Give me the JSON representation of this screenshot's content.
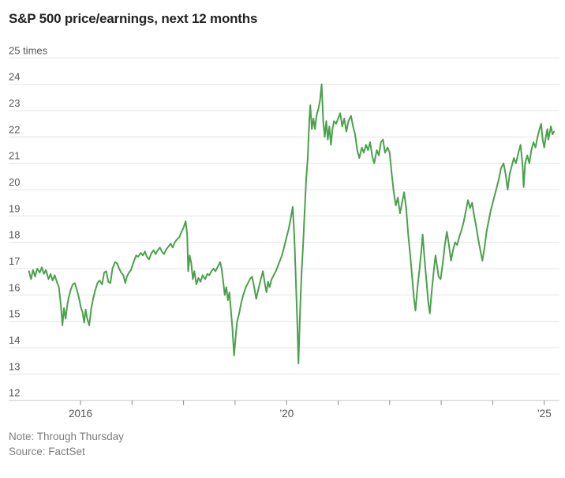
{
  "header": {
    "title": "S&P 500 price/earnings, next 12 months"
  },
  "footer": {
    "note": "Note: Through Thursday",
    "source": "Source: FactSet"
  },
  "colors": {
    "line_green": "#4aa14b",
    "gridline": "#e4e4e4",
    "axis_line": "#c8c8c8",
    "tick_mark": "#8f8f8f",
    "axis_label": "#555555",
    "title_text": "#222222",
    "footnote_text": "#7d7d7d"
  },
  "chart_data": {
    "type": "line",
    "title": "S&P 500 price/earnings, next 12 months",
    "xlabel": "",
    "ylabel": "times",
    "unit_label": "25 times",
    "ylim": [
      12,
      25
    ],
    "xlim": [
      2015.0,
      2025.2
    ],
    "grid": "horizontal",
    "legend": "none",
    "line_color": "#4aa14b",
    "y_ticks": [
      12,
      13,
      14,
      15,
      16,
      17,
      18,
      19,
      20,
      21,
      22,
      23,
      24,
      25
    ],
    "y_top_tick_label": "25 times",
    "x_ticks": [
      2016,
      2017,
      2018,
      2019,
      2020,
      2021,
      2022,
      2023,
      2024,
      2025
    ],
    "x_tick_labels": {
      "2016": "2016",
      "2020": "’20",
      "2025": "’25"
    },
    "note": "Note: Through Thursday",
    "source": "Source: FactSet",
    "series": [
      {
        "name": "S&P 500 price/earnings, next 12 months",
        "points": [
          [
            2015.0,
            16.9
          ],
          [
            2015.04,
            16.6
          ],
          [
            2015.08,
            16.95
          ],
          [
            2015.12,
            16.7
          ],
          [
            2015.16,
            17.0
          ],
          [
            2015.21,
            16.85
          ],
          [
            2015.25,
            17.05
          ],
          [
            2015.29,
            16.8
          ],
          [
            2015.33,
            16.95
          ],
          [
            2015.38,
            16.6
          ],
          [
            2015.42,
            16.8
          ],
          [
            2015.46,
            16.55
          ],
          [
            2015.5,
            16.75
          ],
          [
            2015.54,
            16.5
          ],
          [
            2015.58,
            16.3
          ],
          [
            2015.62,
            15.6
          ],
          [
            2015.65,
            14.85
          ],
          [
            2015.68,
            15.5
          ],
          [
            2015.71,
            15.1
          ],
          [
            2015.74,
            15.55
          ],
          [
            2015.77,
            15.9
          ],
          [
            2015.81,
            16.2
          ],
          [
            2015.85,
            16.4
          ],
          [
            2015.89,
            16.45
          ],
          [
            2015.93,
            16.2
          ],
          [
            2015.97,
            15.9
          ],
          [
            2016.01,
            15.5
          ],
          [
            2016.04,
            15.35
          ],
          [
            2016.07,
            14.95
          ],
          [
            2016.1,
            15.45
          ],
          [
            2016.13,
            15.1
          ],
          [
            2016.17,
            14.85
          ],
          [
            2016.21,
            15.5
          ],
          [
            2016.25,
            15.9
          ],
          [
            2016.29,
            16.2
          ],
          [
            2016.33,
            16.45
          ],
          [
            2016.37,
            16.55
          ],
          [
            2016.42,
            16.4
          ],
          [
            2016.46,
            16.85
          ],
          [
            2016.5,
            16.9
          ],
          [
            2016.54,
            16.5
          ],
          [
            2016.58,
            16.45
          ],
          [
            2016.62,
            17.0
          ],
          [
            2016.67,
            17.25
          ],
          [
            2016.71,
            17.2
          ],
          [
            2016.75,
            17.0
          ],
          [
            2016.79,
            16.85
          ],
          [
            2016.83,
            16.75
          ],
          [
            2016.87,
            16.45
          ],
          [
            2016.9,
            16.7
          ],
          [
            2016.94,
            16.85
          ],
          [
            2016.98,
            16.95
          ],
          [
            2017.04,
            17.3
          ],
          [
            2017.08,
            17.5
          ],
          [
            2017.12,
            17.45
          ],
          [
            2017.17,
            17.6
          ],
          [
            2017.21,
            17.5
          ],
          [
            2017.25,
            17.65
          ],
          [
            2017.29,
            17.45
          ],
          [
            2017.33,
            17.35
          ],
          [
            2017.38,
            17.6
          ],
          [
            2017.42,
            17.7
          ],
          [
            2017.46,
            17.55
          ],
          [
            2017.5,
            17.7
          ],
          [
            2017.54,
            17.8
          ],
          [
            2017.58,
            17.65
          ],
          [
            2017.62,
            17.55
          ],
          [
            2017.67,
            17.75
          ],
          [
            2017.71,
            17.85
          ],
          [
            2017.75,
            17.95
          ],
          [
            2017.79,
            17.8
          ],
          [
            2017.83,
            18.0
          ],
          [
            2017.87,
            18.1
          ],
          [
            2017.92,
            18.2
          ],
          [
            2017.96,
            18.4
          ],
          [
            2018.0,
            18.55
          ],
          [
            2018.04,
            18.8
          ],
          [
            2018.07,
            18.3
          ],
          [
            2018.09,
            16.9
          ],
          [
            2018.12,
            17.5
          ],
          [
            2018.15,
            17.2
          ],
          [
            2018.18,
            16.6
          ],
          [
            2018.21,
            16.9
          ],
          [
            2018.25,
            16.4
          ],
          [
            2018.29,
            16.65
          ],
          [
            2018.33,
            16.5
          ],
          [
            2018.37,
            16.75
          ],
          [
            2018.42,
            16.6
          ],
          [
            2018.46,
            16.8
          ],
          [
            2018.5,
            16.75
          ],
          [
            2018.54,
            16.9
          ],
          [
            2018.58,
            17.0
          ],
          [
            2018.62,
            16.9
          ],
          [
            2018.67,
            17.1
          ],
          [
            2018.71,
            17.25
          ],
          [
            2018.74,
            17.0
          ],
          [
            2018.77,
            16.5
          ],
          [
            2018.8,
            16.0
          ],
          [
            2018.83,
            16.3
          ],
          [
            2018.86,
            15.8
          ],
          [
            2018.89,
            16.1
          ],
          [
            2018.92,
            15.4
          ],
          [
            2018.95,
            14.7
          ],
          [
            2018.98,
            13.7
          ],
          [
            2019.01,
            14.4
          ],
          [
            2019.04,
            15.0
          ],
          [
            2019.08,
            15.3
          ],
          [
            2019.12,
            15.7
          ],
          [
            2019.16,
            16.0
          ],
          [
            2019.21,
            16.3
          ],
          [
            2019.25,
            16.45
          ],
          [
            2019.29,
            16.6
          ],
          [
            2019.33,
            16.7
          ],
          [
            2019.37,
            16.3
          ],
          [
            2019.41,
            15.85
          ],
          [
            2019.45,
            16.2
          ],
          [
            2019.5,
            16.6
          ],
          [
            2019.54,
            16.9
          ],
          [
            2019.58,
            16.4
          ],
          [
            2019.61,
            16.1
          ],
          [
            2019.64,
            16.5
          ],
          [
            2019.67,
            16.3
          ],
          [
            2019.71,
            16.6
          ],
          [
            2019.75,
            16.75
          ],
          [
            2019.79,
            16.9
          ],
          [
            2019.83,
            17.1
          ],
          [
            2019.87,
            17.3
          ],
          [
            2019.91,
            17.5
          ],
          [
            2019.95,
            17.8
          ],
          [
            2020.0,
            18.2
          ],
          [
            2020.04,
            18.5
          ],
          [
            2020.08,
            18.9
          ],
          [
            2020.12,
            19.35
          ],
          [
            2020.15,
            18.2
          ],
          [
            2020.18,
            16.5
          ],
          [
            2020.21,
            14.8
          ],
          [
            2020.23,
            13.4
          ],
          [
            2020.26,
            15.3
          ],
          [
            2020.29,
            16.8
          ],
          [
            2020.32,
            17.9
          ],
          [
            2020.35,
            19.2
          ],
          [
            2020.38,
            20.4
          ],
          [
            2020.41,
            21.2
          ],
          [
            2020.44,
            22.6
          ],
          [
            2020.46,
            23.2
          ],
          [
            2020.49,
            22.3
          ],
          [
            2020.52,
            22.7
          ],
          [
            2020.55,
            22.3
          ],
          [
            2020.58,
            22.8
          ],
          [
            2020.62,
            23.1
          ],
          [
            2020.65,
            23.4
          ],
          [
            2020.68,
            24.0
          ],
          [
            2020.71,
            22.6
          ],
          [
            2020.74,
            22.0
          ],
          [
            2020.77,
            22.6
          ],
          [
            2020.8,
            21.9
          ],
          [
            2020.83,
            22.4
          ],
          [
            2020.86,
            21.7
          ],
          [
            2020.89,
            22.3
          ],
          [
            2020.92,
            22.6
          ],
          [
            2020.96,
            22.5
          ],
          [
            2021.0,
            22.7
          ],
          [
            2021.04,
            22.9
          ],
          [
            2021.08,
            22.4
          ],
          [
            2021.12,
            22.7
          ],
          [
            2021.16,
            22.2
          ],
          [
            2021.2,
            22.6
          ],
          [
            2021.25,
            22.8
          ],
          [
            2021.29,
            22.4
          ],
          [
            2021.33,
            22.1
          ],
          [
            2021.37,
            21.5
          ],
          [
            2021.41,
            21.2
          ],
          [
            2021.46,
            21.6
          ],
          [
            2021.5,
            21.4
          ],
          [
            2021.54,
            21.7
          ],
          [
            2021.58,
            21.5
          ],
          [
            2021.62,
            21.8
          ],
          [
            2021.66,
            21.3
          ],
          [
            2021.7,
            21.0
          ],
          [
            2021.75,
            21.5
          ],
          [
            2021.79,
            21.3
          ],
          [
            2021.83,
            21.8
          ],
          [
            2021.87,
            21.9
          ],
          [
            2021.91,
            21.4
          ],
          [
            2021.96,
            21.6
          ],
          [
            2022.0,
            21.4
          ],
          [
            2022.04,
            20.6
          ],
          [
            2022.08,
            19.9
          ],
          [
            2022.12,
            19.4
          ],
          [
            2022.16,
            19.7
          ],
          [
            2022.2,
            19.1
          ],
          [
            2022.24,
            19.5
          ],
          [
            2022.28,
            19.9
          ],
          [
            2022.32,
            19.3
          ],
          [
            2022.36,
            18.3
          ],
          [
            2022.4,
            17.5
          ],
          [
            2022.44,
            16.6
          ],
          [
            2022.47,
            15.9
          ],
          [
            2022.5,
            15.4
          ],
          [
            2022.54,
            16.3
          ],
          [
            2022.58,
            17.0
          ],
          [
            2022.62,
            17.8
          ],
          [
            2022.64,
            18.3
          ],
          [
            2022.68,
            17.3
          ],
          [
            2022.72,
            16.4
          ],
          [
            2022.75,
            15.7
          ],
          [
            2022.78,
            15.3
          ],
          [
            2022.82,
            16.2
          ],
          [
            2022.86,
            17.0
          ],
          [
            2022.89,
            17.5
          ],
          [
            2022.92,
            17.1
          ],
          [
            2022.95,
            16.7
          ],
          [
            2022.99,
            16.6
          ],
          [
            2023.03,
            17.2
          ],
          [
            2023.07,
            17.9
          ],
          [
            2023.11,
            18.4
          ],
          [
            2023.15,
            17.9
          ],
          [
            2023.19,
            17.3
          ],
          [
            2023.23,
            17.7
          ],
          [
            2023.27,
            18.0
          ],
          [
            2023.31,
            17.9
          ],
          [
            2023.35,
            18.2
          ],
          [
            2023.4,
            18.5
          ],
          [
            2023.44,
            18.8
          ],
          [
            2023.48,
            19.2
          ],
          [
            2023.52,
            19.6
          ],
          [
            2023.56,
            19.3
          ],
          [
            2023.6,
            19.5
          ],
          [
            2023.64,
            19.0
          ],
          [
            2023.68,
            18.6
          ],
          [
            2023.72,
            18.1
          ],
          [
            2023.76,
            17.7
          ],
          [
            2023.8,
            17.3
          ],
          [
            2023.84,
            17.8
          ],
          [
            2023.88,
            18.4
          ],
          [
            2023.92,
            18.8
          ],
          [
            2023.96,
            19.2
          ],
          [
            2024.0,
            19.5
          ],
          [
            2024.04,
            19.8
          ],
          [
            2024.08,
            20.1
          ],
          [
            2024.12,
            20.4
          ],
          [
            2024.16,
            20.8
          ],
          [
            2024.21,
            21.0
          ],
          [
            2024.25,
            20.6
          ],
          [
            2024.29,
            20.0
          ],
          [
            2024.33,
            20.6
          ],
          [
            2024.37,
            20.9
          ],
          [
            2024.41,
            21.2
          ],
          [
            2024.45,
            21.0
          ],
          [
            2024.5,
            21.4
          ],
          [
            2024.54,
            21.7
          ],
          [
            2024.58,
            20.9
          ],
          [
            2024.6,
            20.1
          ],
          [
            2024.63,
            21.0
          ],
          [
            2024.67,
            21.3
          ],
          [
            2024.71,
            21.0
          ],
          [
            2024.75,
            21.5
          ],
          [
            2024.79,
            21.8
          ],
          [
            2024.83,
            21.6
          ],
          [
            2024.87,
            22.0
          ],
          [
            2024.91,
            22.3
          ],
          [
            2024.94,
            22.5
          ],
          [
            2024.97,
            21.9
          ],
          [
            2025.0,
            21.6
          ],
          [
            2025.03,
            22.0
          ],
          [
            2025.06,
            22.3
          ],
          [
            2025.08,
            21.9
          ],
          [
            2025.1,
            22.1
          ],
          [
            2025.13,
            22.4
          ],
          [
            2025.16,
            22.1
          ],
          [
            2025.19,
            22.2
          ]
        ]
      }
    ]
  }
}
